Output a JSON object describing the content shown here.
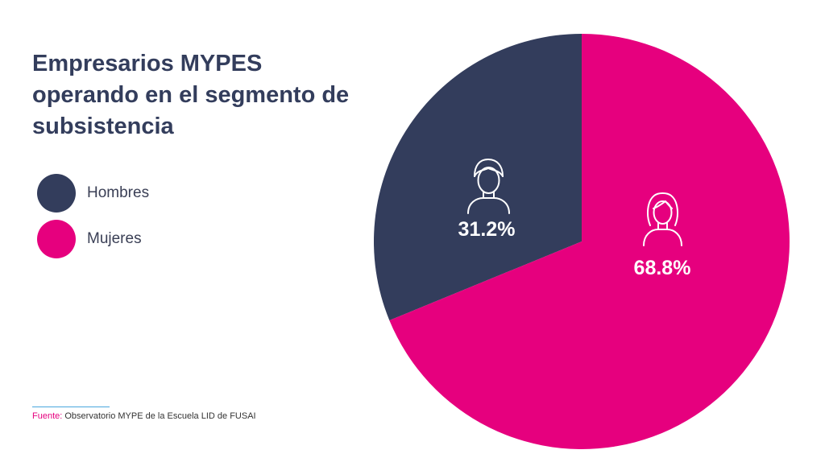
{
  "chart_data": {
    "type": "pie",
    "title": "Empresarios MYPES operando en el segmento de subsistencia",
    "categories": [
      "Hombres",
      "Mujeres"
    ],
    "values": [
      31.2,
      68.8
    ],
    "data_labels": [
      "31.2%",
      "68.8%"
    ],
    "colors": [
      "#333d5c",
      "#e6007e"
    ],
    "icons": [
      "man-icon",
      "woman-icon"
    ],
    "legend_position": "left"
  },
  "source": {
    "label": "Fuente:",
    "text": " Observatorio MYPE de la Escuela LID de FUSAI"
  }
}
